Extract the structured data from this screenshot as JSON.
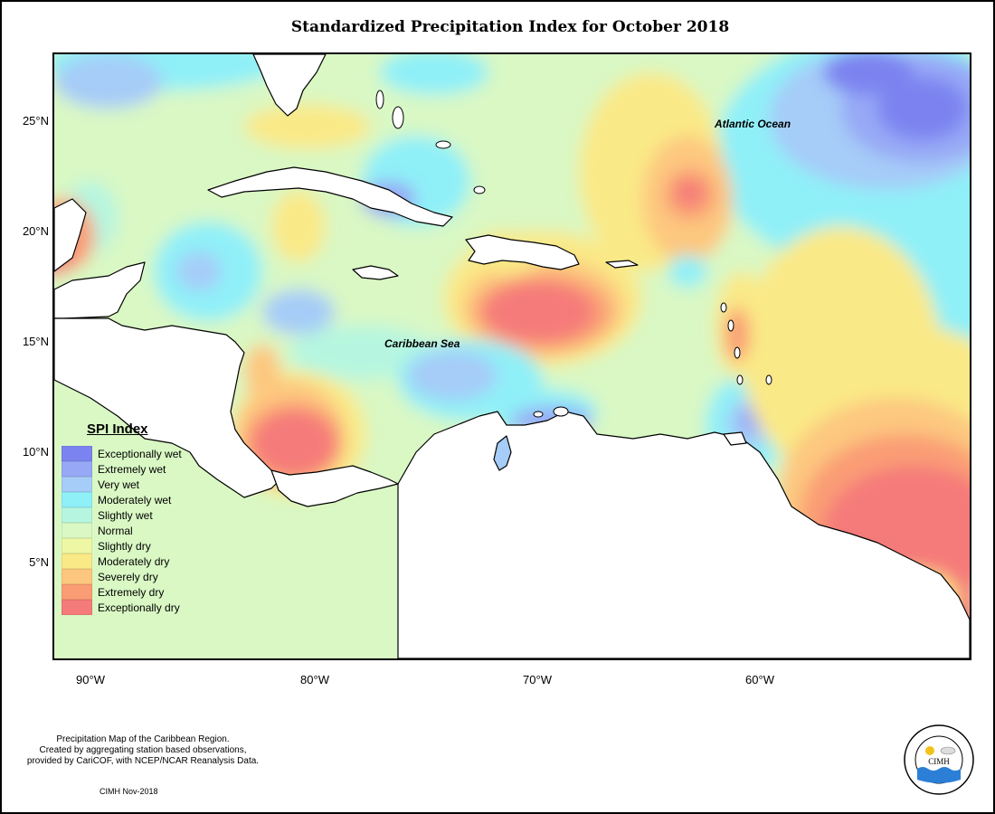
{
  "title": "Standardized Precipitation Index for October 2018",
  "map": {
    "lat_ticks": [
      "25°N",
      "20°N",
      "15°N",
      "10°N",
      "5°N"
    ],
    "lon_ticks": [
      "90°W",
      "80°W",
      "70°W",
      "60°W"
    ],
    "labels": {
      "atlantic": "Atlantic Ocean",
      "caribbean": "Caribbean Sea"
    }
  },
  "legend": {
    "title": "SPI Index",
    "items": [
      {
        "label": "Exceptionally wet",
        "color": "#7b83f0"
      },
      {
        "label": "Extremely wet",
        "color": "#97a9f6"
      },
      {
        "label": "Very wet",
        "color": "#a6ccf8"
      },
      {
        "label": "Moderately wet",
        "color": "#8ff0f8"
      },
      {
        "label": "Slightly wet",
        "color": "#b6f6e0"
      },
      {
        "label": "Normal",
        "color": "#d9f8c4"
      },
      {
        "label": "Slightly dry",
        "color": "#eef7a4"
      },
      {
        "label": "Moderately dry",
        "color": "#fae987"
      },
      {
        "label": "Severely dry",
        "color": "#fdc77f"
      },
      {
        "label": "Extremely dry",
        "color": "#fa9d74"
      },
      {
        "label": "Exceptionally dry",
        "color": "#f57a7a"
      }
    ]
  },
  "caption": {
    "line1": "Precipitation Map of the Caribbean Region.",
    "line2": "Created by aggregating station based observations,",
    "line3": "provided by CariCOF, with NCEP/NCAR Reanalysis Data."
  },
  "credit": "CIMH Nov-2018",
  "logo": {
    "text": "CIMH"
  }
}
